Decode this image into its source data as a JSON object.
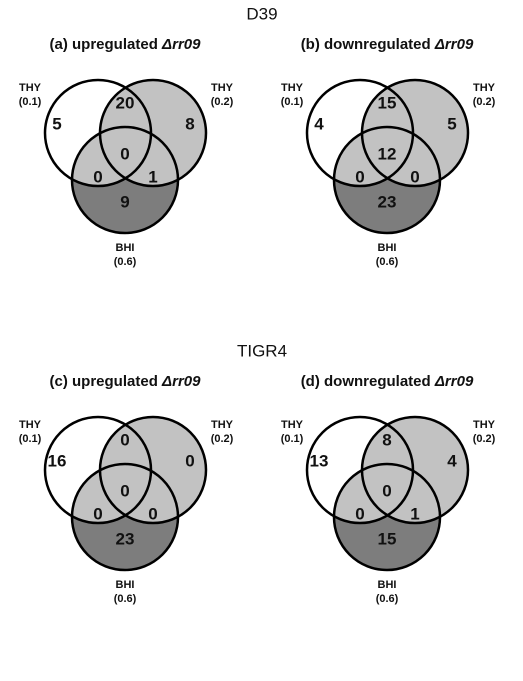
{
  "sections": [
    {
      "title": "D39",
      "panels": [
        {
          "title": {
            "text": "(a) upregulated",
            "gene": "Δrr09"
          },
          "sets": [
            {
              "label": "THY",
              "value": "(0.1)"
            },
            {
              "label": "THY",
              "value": "(0.2)"
            },
            {
              "label": "BHI",
              "value": "(0.6)"
            }
          ],
          "regions": {
            "a": 5,
            "ab": 20,
            "b": 8,
            "abc": 0,
            "ac": 0,
            "bc": 1,
            "c": 9
          }
        },
        {
          "title": {
            "text": "(b) downregulated",
            "gene": "Δrr09"
          },
          "sets": [
            {
              "label": "THY",
              "value": "(0.1)"
            },
            {
              "label": "THY",
              "value": "(0.2)"
            },
            {
              "label": "BHI",
              "value": "(0.6)"
            }
          ],
          "regions": {
            "a": 4,
            "ab": 15,
            "b": 5,
            "abc": 12,
            "ac": 0,
            "bc": 0,
            "c": 23
          }
        }
      ]
    },
    {
      "title": "TIGR4",
      "panels": [
        {
          "title": {
            "text": "(c) upregulated",
            "gene": "Δrr09"
          },
          "sets": [
            {
              "label": "THY",
              "value": "(0.1)"
            },
            {
              "label": "THY",
              "value": "(0.2)"
            },
            {
              "label": "BHI",
              "value": "(0.6)"
            }
          ],
          "regions": {
            "a": 16,
            "ab": 0,
            "b": 0,
            "abc": 0,
            "ac": 0,
            "bc": 0,
            "c": 23
          }
        },
        {
          "title": {
            "text": "(d) downregulated",
            "gene": "Δrr09"
          },
          "sets": [
            {
              "label": "THY",
              "value": "(0.1)"
            },
            {
              "label": "THY",
              "value": "(0.2)"
            },
            {
              "label": "BHI",
              "value": "(0.6)"
            }
          ],
          "regions": {
            "a": 13,
            "ab": 8,
            "b": 4,
            "abc": 0,
            "ac": 0,
            "bc": 1,
            "c": 15
          }
        }
      ]
    }
  ]
}
